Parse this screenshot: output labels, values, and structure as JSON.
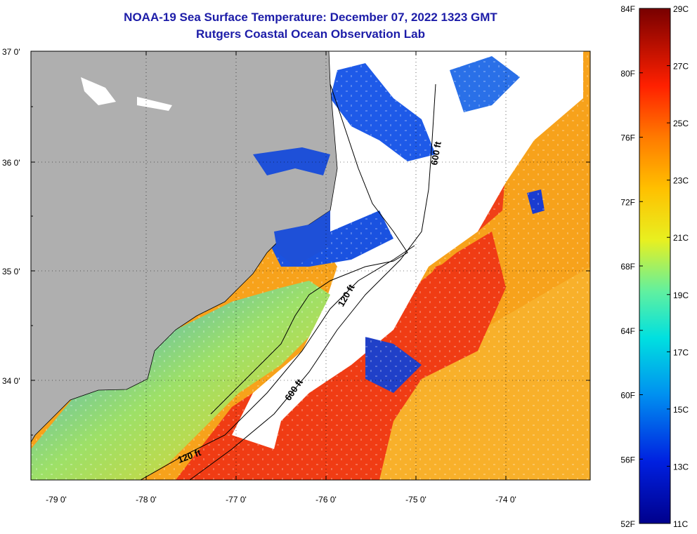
{
  "title": "NOAA-19 Sea Surface Temperature:  December 07, 2022 1323 GMT",
  "subtitle": "Rutgers Coastal Ocean Observation Lab",
  "lat_ticks": [
    "37 0'",
    "36 0'",
    "35 0'",
    "34 0'"
  ],
  "lon_ticks": [
    "-79 0'",
    "-78 0'",
    "-77 0'",
    "-76 0'",
    "-75 0'",
    "-74 0'"
  ],
  "colorbar": {
    "fahrenheit": [
      "84F",
      "80F",
      "76F",
      "72F",
      "68F",
      "64F",
      "60F",
      "56F",
      "52F"
    ],
    "celsius": [
      "29C",
      "27C",
      "25C",
      "23C",
      "21C",
      "19C",
      "17C",
      "15C",
      "13C",
      "11C"
    ]
  },
  "contours": [
    "120 ft",
    "600 ft",
    "600 ft",
    "120 ft"
  ],
  "colors": {
    "land": "#afafaf",
    "cloud": "#ffffff",
    "title": "#1c1ca8",
    "warm": "#f03c14",
    "orange": "#f7a21b",
    "cold": "#1034c8"
  }
}
